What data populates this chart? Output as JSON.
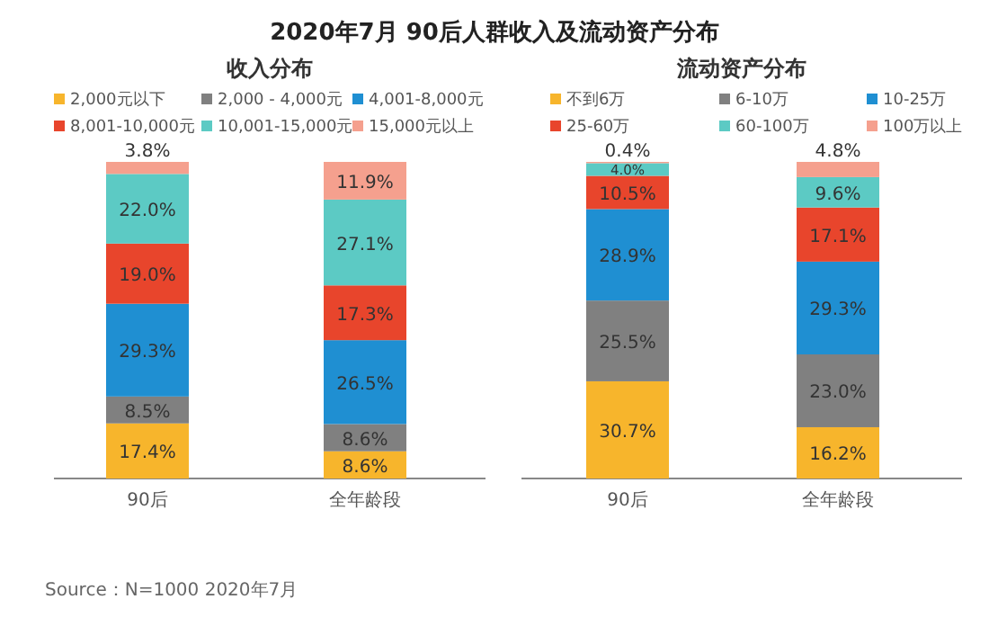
{
  "chart_data": [
    {
      "type": "bar",
      "stacked": true,
      "title": "2020年7月 90后人群收入及流动资产分布",
      "subtitle": "收入分布",
      "categories": [
        "90后",
        "全年龄段"
      ],
      "legend": "top",
      "annotations": [
        "Source：N=1000 2020年7月"
      ],
      "series": [
        {
          "name": "2,000元以下",
          "color": "#f7b52c",
          "values": [
            17.4,
            8.6
          ],
          "value_labels": [
            "17.4%",
            "8.6%"
          ]
        },
        {
          "name": "2,000 - 4,000元",
          "color": "#808080",
          "values": [
            8.5,
            8.6
          ],
          "value_labels": [
            "8.5%",
            "8.6%"
          ]
        },
        {
          "name": "4,001-8,000元",
          "color": "#1f8fd2",
          "values": [
            29.3,
            26.5
          ],
          "value_labels": [
            "29.3%",
            "26.5%"
          ]
        },
        {
          "name": "8,001-10,000元",
          "color": "#e8452c",
          "values": [
            19.0,
            17.3
          ],
          "value_labels": [
            "19.0%",
            "17.3%"
          ]
        },
        {
          "name": "10,001-15,000元",
          "color": "#5ccac4",
          "values": [
            22.0,
            27.1
          ],
          "value_labels": [
            "22.0%",
            "27.1%"
          ]
        },
        {
          "name": "15,000元以上",
          "color": "#f5a08e",
          "values": [
            3.8,
            11.9
          ],
          "value_labels": [
            "3.8%",
            "11.9%"
          ]
        }
      ]
    },
    {
      "type": "bar",
      "stacked": true,
      "title": "流动资产分布",
      "categories": [
        "90后",
        "全年龄段"
      ],
      "legend": "top",
      "series": [
        {
          "name": "不到6万",
          "color": "#f7b52c",
          "values": [
            30.7,
            16.2
          ],
          "value_labels": [
            "30.7%",
            "16.2%"
          ]
        },
        {
          "name": "6-10万",
          "color": "#808080",
          "values": [
            25.5,
            23.0
          ],
          "value_labels": [
            "25.5%",
            "23.0%"
          ]
        },
        {
          "name": "10-25万",
          "color": "#1f8fd2",
          "values": [
            28.9,
            29.3
          ],
          "value_labels": [
            "28.9%",
            "29.3%"
          ]
        },
        {
          "name": "25-60万",
          "color": "#e8452c",
          "values": [
            10.5,
            17.1
          ],
          "value_labels": [
            "10.5%",
            "17.1%"
          ]
        },
        {
          "name": "60-100万",
          "color": "#5ccac4",
          "values": [
            4.0,
            9.6
          ],
          "value_labels": [
            "4.0%",
            "9.6%"
          ]
        },
        {
          "name": "100万以上",
          "color": "#f5a08e",
          "values": [
            0.4,
            4.8
          ],
          "value_labels": [
            "0.4%",
            "4.8%"
          ]
        }
      ]
    }
  ]
}
